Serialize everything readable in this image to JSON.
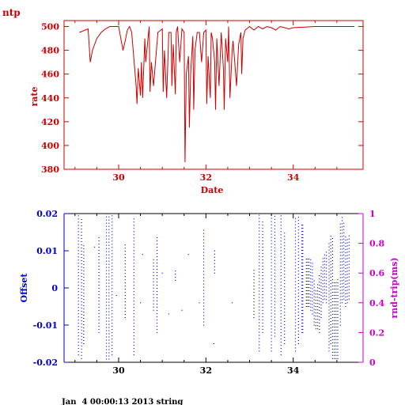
{
  "page": {
    "corner_label": "ntp",
    "footer": "Jan  4 00:00:13 2013 string"
  },
  "colors": {
    "top": "#cc0000",
    "bottom_left": "#0000cc",
    "bottom_right": "#cc00cc",
    "frame": "#000000"
  },
  "chart_data": [
    {
      "type": "line",
      "title": "",
      "xlabel": "Date",
      "ylabel": "rate",
      "xlim": [
        28.75,
        35.6
      ],
      "ylim": [
        380,
        505
      ],
      "xticks": [
        30,
        32,
        34
      ],
      "yticks": [
        380,
        400,
        420,
        440,
        460,
        480,
        500
      ],
      "series": [
        {
          "x": [
            29.1,
            29.3,
            29.35,
            29.4,
            29.5,
            29.6,
            29.7,
            29.8,
            29.9,
            30.0,
            30.1,
            30.15,
            30.2,
            30.25,
            30.3,
            30.4,
            30.42,
            30.45,
            30.5,
            30.52,
            30.55,
            30.6,
            30.62,
            30.7,
            30.72,
            30.75,
            30.8,
            30.9,
            31.0,
            31.02,
            31.05,
            31.1,
            31.15,
            31.2,
            31.22,
            31.25,
            31.3,
            31.32,
            31.35,
            31.4,
            31.45,
            31.5,
            31.52,
            31.55,
            31.6,
            31.62,
            31.65,
            31.7,
            31.72,
            31.75,
            31.8,
            31.85,
            31.9,
            31.95,
            32.0,
            32.02,
            32.05,
            32.1,
            32.12,
            32.15,
            32.2,
            32.22,
            32.25,
            32.3,
            32.35,
            32.4,
            32.42,
            32.45,
            32.5,
            32.52,
            32.55,
            32.6,
            32.62,
            32.65,
            32.7,
            32.75,
            32.8,
            32.82,
            32.85,
            32.9,
            33.0,
            33.1,
            33.2,
            33.3,
            33.4,
            33.5,
            33.6,
            33.7,
            33.8,
            33.9,
            34.0,
            34.5,
            35.0,
            35.4
          ],
          "y": [
            495,
            498,
            470,
            480,
            490,
            495,
            498,
            500,
            500,
            500,
            480,
            488,
            497,
            500,
            495,
            450,
            435,
            465,
            442,
            470,
            440,
            490,
            470,
            500,
            445,
            470,
            450,
            495,
            498,
            445,
            480,
            440,
            495,
            495,
            450,
            485,
            443,
            495,
            500,
            470,
            498,
            495,
            386,
            460,
            475,
            415,
            460,
            492,
            430,
            480,
            495,
            495,
            470,
            495,
            497,
            435,
            475,
            440,
            495,
            490,
            470,
            430,
            490,
            450,
            495,
            465,
            430,
            490,
            470,
            500,
            440,
            480,
            488,
            475,
            450,
            485,
            495,
            460,
            490,
            497,
            500,
            497,
            500,
            498,
            500,
            499,
            497,
            500,
            499,
            498,
            499,
            500,
            500,
            500
          ]
        }
      ]
    },
    {
      "type": "scatter",
      "title": "",
      "xlabel": "",
      "ylabel": "Offset",
      "y2label": "rnd-trip(ms)",
      "xlim": [
        28.75,
        35.6
      ],
      "ylim": [
        -0.02,
        0.02
      ],
      "y2lim": [
        0,
        1
      ],
      "xticks": [
        30,
        32,
        34
      ],
      "yticks": [
        -0.02,
        -0.01,
        0,
        0.01,
        0.02
      ],
      "y2ticks": [
        0,
        0.2,
        0.4,
        0.6,
        0.8,
        1
      ],
      "xtick_labels": [
        "30",
        "32",
        "34"
      ],
      "ytick_labels": [
        "-0.02",
        "-0.01",
        "0",
        "0.01",
        "0.02"
      ],
      "y2tick_labels": [
        "0",
        "0.2",
        "0.4",
        "0.6",
        "0.8",
        "1"
      ],
      "columns": [
        {
          "x": 29.08,
          "ymin": -0.018,
          "ymax": 0.02
        },
        {
          "x": 29.15,
          "ymin": -0.019,
          "ymax": 0.019
        },
        {
          "x": 29.2,
          "ymin": -0.015,
          "ymax": 0.012
        },
        {
          "x": 29.55,
          "ymin": -0.012,
          "ymax": 0.014
        },
        {
          "x": 29.72,
          "ymin": -0.02,
          "ymax": 0.02
        },
        {
          "x": 29.78,
          "ymin": -0.02,
          "ymax": 0.02
        },
        {
          "x": 29.85,
          "ymin": -0.018,
          "ymax": 0.02
        },
        {
          "x": 30.15,
          "ymin": -0.008,
          "ymax": 0.012
        },
        {
          "x": 30.35,
          "ymin": -0.018,
          "ymax": 0.019
        },
        {
          "x": 30.8,
          "ymin": -0.006,
          "ymax": 0.008
        },
        {
          "x": 30.88,
          "ymin": -0.012,
          "ymax": 0.014
        },
        {
          "x": 31.3,
          "ymin": 0.002,
          "ymax": 0.005
        },
        {
          "x": 31.95,
          "ymin": -0.01,
          "ymax": 0.016
        },
        {
          "x": 32.2,
          "ymin": 0.004,
          "ymax": 0.01
        },
        {
          "x": 33.1,
          "ymin": -0.008,
          "ymax": 0.005
        },
        {
          "x": 33.22,
          "ymin": -0.017,
          "ymax": 0.02
        },
        {
          "x": 33.3,
          "ymin": -0.012,
          "ymax": 0.018
        },
        {
          "x": 33.5,
          "ymin": -0.017,
          "ymax": 0.02
        },
        {
          "x": 33.58,
          "ymin": -0.013,
          "ymax": 0.02
        },
        {
          "x": 33.72,
          "ymin": -0.018,
          "ymax": 0.02
        },
        {
          "x": 33.8,
          "ymin": -0.015,
          "ymax": 0.015
        },
        {
          "x": 34.05,
          "ymin": -0.017,
          "ymax": 0.019
        },
        {
          "x": 34.12,
          "ymin": -0.015,
          "ymax": 0.019
        },
        {
          "x": 34.2,
          "ymin": -0.012,
          "ymax": 0.017
        },
        {
          "x": 34.22,
          "ymin": -0.012,
          "ymax": 0.017
        },
        {
          "x": 34.3,
          "ymin": -0.005,
          "ymax": 0.008
        },
        {
          "x": 34.33,
          "ymin": -0.005,
          "ymax": 0.008
        },
        {
          "x": 34.36,
          "ymin": -0.005,
          "ymax": 0.008
        },
        {
          "x": 34.4,
          "ymin": -0.006,
          "ymax": 0.008
        },
        {
          "x": 34.44,
          "ymin": -0.007,
          "ymax": 0.007
        },
        {
          "x": 34.48,
          "ymin": -0.01,
          "ymax": 0.002
        },
        {
          "x": 34.52,
          "ymin": -0.011,
          "ymax": 0.0
        },
        {
          "x": 34.56,
          "ymin": -0.011,
          "ymax": 0.001
        },
        {
          "x": 34.6,
          "ymin": -0.012,
          "ymax": 0.004
        },
        {
          "x": 34.64,
          "ymin": -0.008,
          "ymax": 0.006
        },
        {
          "x": 34.68,
          "ymin": -0.004,
          "ymax": 0.008
        },
        {
          "x": 34.72,
          "ymin": -0.003,
          "ymax": 0.009
        },
        {
          "x": 34.76,
          "ymin": -0.004,
          "ymax": 0.01
        },
        {
          "x": 34.82,
          "ymin": -0.017,
          "ymax": 0.012
        },
        {
          "x": 34.86,
          "ymin": -0.015,
          "ymax": 0.014
        },
        {
          "x": 34.9,
          "ymin": -0.019,
          "ymax": 0.014
        },
        {
          "x": 34.94,
          "ymin": -0.019,
          "ymax": 0.002
        },
        {
          "x": 34.98,
          "ymin": -0.019,
          "ymax": 0.002
        },
        {
          "x": 35.02,
          "ymin": -0.019,
          "ymax": 0.003
        },
        {
          "x": 35.08,
          "ymin": -0.01,
          "ymax": 0.018
        },
        {
          "x": 35.12,
          "ymin": -0.004,
          "ymax": 0.019
        },
        {
          "x": 35.16,
          "ymin": -0.003,
          "ymax": 0.018
        },
        {
          "x": 35.2,
          "ymin": -0.005,
          "ymax": 0.014
        },
        {
          "x": 35.24,
          "ymin": -0.004,
          "ymax": 0.013
        },
        {
          "x": 35.28,
          "ymin": -0.003,
          "ymax": 0.014
        }
      ],
      "isolated_points": [
        {
          "x": 29.45,
          "y": 0.011
        },
        {
          "x": 30.55,
          "y": 0.009
        },
        {
          "x": 31.0,
          "y": 0.004
        },
        {
          "x": 31.45,
          "y": -0.006
        },
        {
          "x": 31.6,
          "y": 0.009
        },
        {
          "x": 31.85,
          "y": -0.004
        },
        {
          "x": 32.18,
          "y": -0.015
        },
        {
          "x": 32.6,
          "y": -0.004
        },
        {
          "x": 30.5,
          "y": -0.004
        },
        {
          "x": 31.15,
          "y": -0.007
        },
        {
          "x": 29.95,
          "y": -0.002
        }
      ]
    }
  ]
}
